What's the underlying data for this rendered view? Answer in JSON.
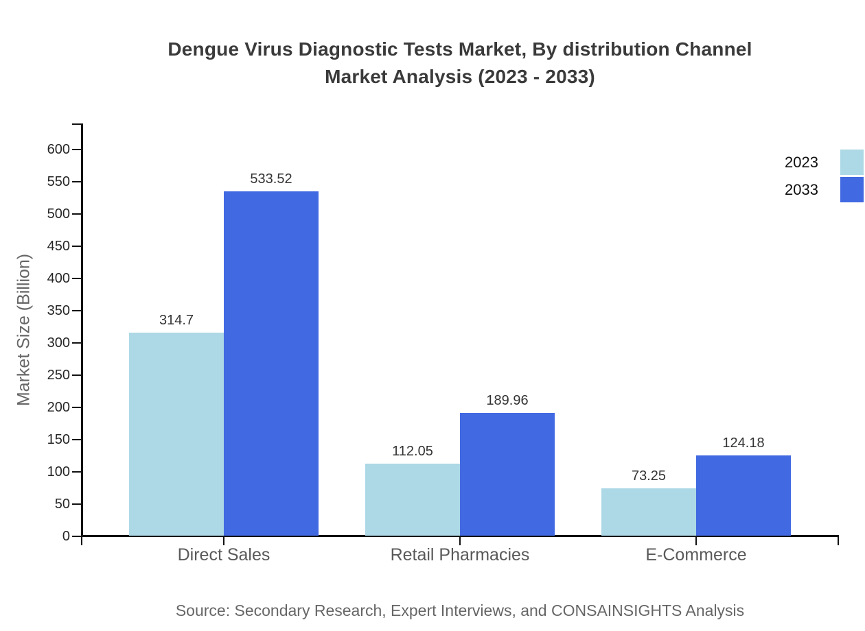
{
  "title": {
    "line1": "Dengue Virus Diagnostic Tests Market, By distribution Channel",
    "line2": "Market Analysis (2023 - 2033)"
  },
  "source": "Source: Secondary Research, Expert Interviews, and CONSAINSIGHTS Analysis",
  "colors": {
    "series_2023": "#add8e6",
    "series_2033": "#4169e1",
    "axis": "#111111",
    "title_text": "#3a3a3a",
    "tick_label": "#262626",
    "category_label": "#595959",
    "muted_text": "#666666"
  },
  "chart_data": {
    "type": "bar",
    "title": "Dengue Virus Diagnostic Tests Market, By distribution Channel Market Analysis (2023 - 2033)",
    "categories": [
      "Direct Sales",
      "Retail Pharmacies",
      "E-Commerce"
    ],
    "series": [
      {
        "name": "2023",
        "color": "#add8e6",
        "values": [
          314.7,
          112.05,
          73.25
        ]
      },
      {
        "name": "2033",
        "color": "#4169e1",
        "values": [
          533.52,
          189.96,
          124.18
        ]
      }
    ],
    "xlabel": "",
    "ylabel": "Market Size (Billion)",
    "ylim": [
      0,
      600
    ],
    "ytick_step": 50,
    "grid": false,
    "legend_position": "top-right",
    "value_labels": true
  }
}
